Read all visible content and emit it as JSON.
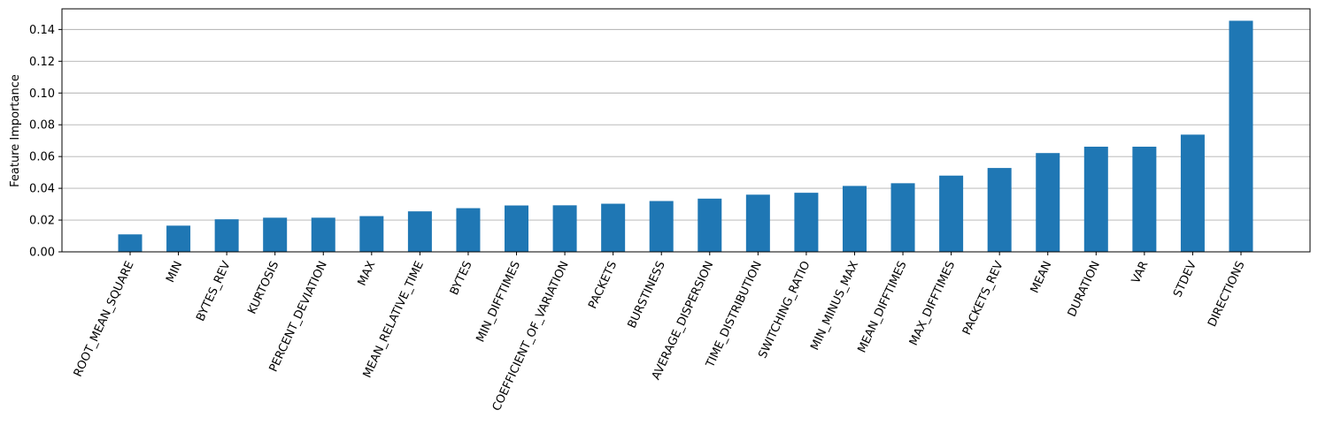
{
  "chart_data": {
    "type": "bar",
    "ylabel": "Feature Importance",
    "xlabel": "",
    "categories": [
      "ROOT_MEAN_SQUARE",
      "MIN",
      "BYTES_REV",
      "KURTOSIS",
      "PERCENT_DEVIATION",
      "MAX",
      "MEAN_RELATIVE_TIME",
      "BYTES",
      "MIN_DIFFTIMES",
      "COEFFICIENT_OF_VARIATION",
      "PACKETS",
      "BURSTINESS",
      "AVERAGE_DISPERSION",
      "TIME_DISTRIBUTION",
      "SWITCHING_RATIO",
      "MIN_MINUS_MAX",
      "MEAN_DIFFTIMES",
      "MAX_DIFFTIMES",
      "PACKETS_REV",
      "MEAN",
      "DURATION",
      "VAR",
      "STDEV",
      "DIRECTIONS"
    ],
    "values": [
      0.011,
      0.0165,
      0.0205,
      0.0215,
      0.0215,
      0.0225,
      0.0255,
      0.0275,
      0.0292,
      0.0293,
      0.0303,
      0.032,
      0.0335,
      0.036,
      0.0372,
      0.0415,
      0.0432,
      0.048,
      0.0528,
      0.0622,
      0.0662,
      0.0662,
      0.0738,
      0.1455
    ],
    "ylim": [
      0,
      0.153
    ],
    "yticks": [
      "0.00",
      "0.02",
      "0.04",
      "0.06",
      "0.08",
      "0.10",
      "0.12",
      "0.14"
    ],
    "grid": "y",
    "bar_color": "#1f77b4"
  }
}
